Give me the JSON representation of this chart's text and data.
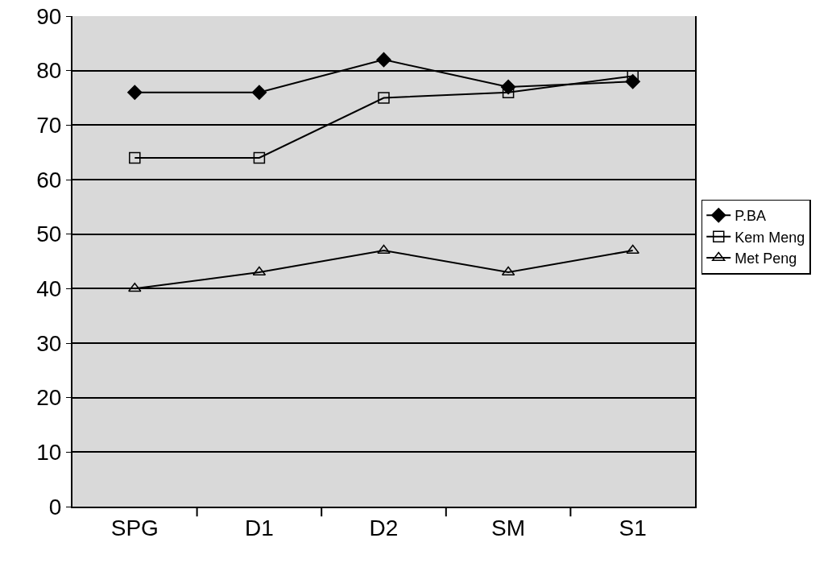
{
  "chart_data": {
    "type": "line",
    "categories": [
      "SPG",
      "D1",
      "D2",
      "SM",
      "S1"
    ],
    "series": [
      {
        "name": "P.BA",
        "color": "#000000",
        "marker": "diamond",
        "values": [
          76,
          76,
          82,
          77,
          78
        ]
      },
      {
        "name": "Kem Meng",
        "color": "#000000",
        "marker": "square",
        "values": [
          64,
          64,
          75,
          76,
          79
        ]
      },
      {
        "name": "Met Peng",
        "color": "#000000",
        "marker": "triangle",
        "values": [
          40,
          43,
          47,
          43,
          47
        ]
      }
    ],
    "ylim": [
      0,
      90
    ],
    "yticks": [
      0,
      10,
      20,
      30,
      40,
      50,
      60,
      70,
      80,
      90
    ],
    "grid": "y",
    "legend": "right",
    "line_style": "solid"
  }
}
